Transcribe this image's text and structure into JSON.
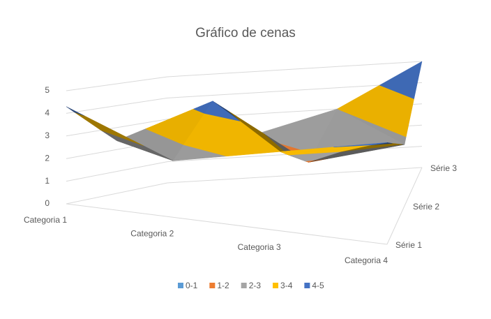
{
  "chart_data": {
    "type": "surface3d",
    "title": "Gráfico de cenas",
    "categories": [
      "Categoria 1",
      "Categoria 2",
      "Categoria 3",
      "Categoria 4"
    ],
    "series": [
      {
        "name": "Série 1",
        "values": [
          4.3,
          2.5,
          3.5,
          4.5
        ]
      },
      {
        "name": "Série 2",
        "values": [
          2.4,
          4.4,
          1.8,
          2.8
        ]
      },
      {
        "name": "Série 3",
        "values": [
          2,
          2,
          3,
          5
        ]
      }
    ],
    "zlim": [
      0,
      5
    ],
    "zticks": [
      0,
      1,
      2,
      3,
      4,
      5
    ],
    "bands": [
      {
        "name": "0-1",
        "color": "#5b9bd5"
      },
      {
        "name": "1-2",
        "color": "#ed7d31"
      },
      {
        "name": "2-3",
        "color": "#a5a5a5"
      },
      {
        "name": "3-4",
        "color": "#ffc000"
      },
      {
        "name": "4-5",
        "color": "#4472c4"
      }
    ],
    "grid": true,
    "legend": "bottom"
  }
}
